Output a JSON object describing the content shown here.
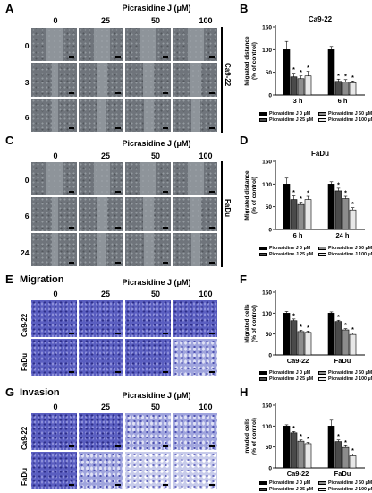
{
  "panels": {
    "A": {
      "letter": "A",
      "title": "Picrasidine J (μM)",
      "concs": [
        "0",
        "25",
        "50",
        "100"
      ],
      "rows": [
        "0 h",
        "3 h",
        "6 h"
      ],
      "cell_line": "Ca9-22"
    },
    "C": {
      "letter": "C",
      "title": "Picrasidine J (μM)",
      "concs": [
        "0",
        "25",
        "50",
        "100"
      ],
      "rows": [
        "0 h",
        "6 h",
        "24 h"
      ],
      "cell_line": "FaDu"
    },
    "E": {
      "letter": "E",
      "label": "Migration",
      "title": "Picrasidine J (μM)",
      "concs": [
        "0",
        "25",
        "50",
        "100"
      ],
      "rows": [
        "Ca9-22",
        "FaDu"
      ]
    },
    "G": {
      "letter": "G",
      "label": "Invasion",
      "title": "Picrasidine J (μM)",
      "concs": [
        "0",
        "25",
        "50",
        "100"
      ],
      "rows": [
        "Ca9-22",
        "FaDu"
      ]
    }
  },
  "legend": [
    "Picrasidine J 0 μM",
    "Picrasidine J 50 μM",
    "Picrasidine J 25 μM",
    "Picrasidine J 100 μM"
  ],
  "colors": {
    "c0": "#000000",
    "c25": "#4a4a4a",
    "c50": "#8c8c8c",
    "c100": "#e8e8e8",
    "stain": "#5a5ec0"
  },
  "chart_data": [
    {
      "id": "B",
      "type": "bar",
      "title": "Ca9-22",
      "ylabel": "Migrated distance\n(% of control)",
      "ylim": [
        0,
        150
      ],
      "yticks": [
        0,
        50,
        100,
        150
      ],
      "categories": [
        "3 h",
        "6 h"
      ],
      "series": [
        {
          "name": "Picrasidine J 0 μM",
          "values": [
            100,
            100
          ],
          "err": [
            18,
            7
          ]
        },
        {
          "name": "Picrasidine J 25 μM",
          "values": [
            40,
            30
          ],
          "err": [
            8,
            5
          ]
        },
        {
          "name": "Picrasidine J 50 μM",
          "values": [
            36,
            29
          ],
          "err": [
            6,
            5
          ]
        },
        {
          "name": "Picrasidine J 100 μM",
          "values": [
            42,
            27
          ],
          "err": [
            10,
            4
          ]
        }
      ],
      "sig": [
        "",
        "*",
        "*",
        "*"
      ]
    },
    {
      "id": "D",
      "type": "bar",
      "title": "FaDu",
      "ylabel": "Migrated distance\n(% of control)",
      "ylim": [
        0,
        150
      ],
      "yticks": [
        0,
        50,
        100,
        150
      ],
      "categories": [
        "6 h",
        "24 h"
      ],
      "series": [
        {
          "name": "Picrasidine J 0 μM",
          "values": [
            100,
            100
          ],
          "err": [
            13,
            5
          ]
        },
        {
          "name": "Picrasidine J 25 μM",
          "values": [
            66,
            85
          ],
          "err": [
            8,
            6
          ]
        },
        {
          "name": "Picrasidine J 50 μM",
          "values": [
            55,
            68
          ],
          "err": [
            5,
            5
          ]
        },
        {
          "name": "Picrasidine J 100 μM",
          "values": [
            66,
            43
          ],
          "err": [
            7,
            5
          ]
        }
      ],
      "sig": [
        "",
        "*",
        "*",
        "*"
      ]
    },
    {
      "id": "F",
      "type": "bar",
      "title": "",
      "ylabel": "Migrated cells\n(% of control)",
      "ylim": [
        0,
        150
      ],
      "yticks": [
        0,
        50,
        100,
        150
      ],
      "categories": [
        "Ca9-22",
        "FaDu"
      ],
      "series": [
        {
          "name": "Picrasidine J 0 μM",
          "values": [
            100,
            100
          ],
          "err": [
            4,
            3
          ]
        },
        {
          "name": "Picrasidine J 25 μM",
          "values": [
            82,
            80
          ],
          "err": [
            4,
            3
          ]
        },
        {
          "name": "Picrasidine J 50 μM",
          "values": [
            56,
            60
          ],
          "err": [
            3,
            3
          ]
        },
        {
          "name": "Picrasidine J 100 μM",
          "values": [
            54,
            49
          ],
          "err": [
            3,
            3
          ]
        }
      ],
      "sig": [
        "",
        "*",
        "*",
        "*"
      ]
    },
    {
      "id": "H",
      "type": "bar",
      "title": "",
      "ylabel": "Invaded cells\n(% of control)",
      "ylim": [
        0,
        150
      ],
      "yticks": [
        0,
        50,
        100,
        150
      ],
      "categories": [
        "Ca9-22",
        "FaDu"
      ],
      "series": [
        {
          "name": "Picrasidine J 0 μM",
          "values": [
            100,
            100
          ],
          "err": [
            3,
            14
          ]
        },
        {
          "name": "Picrasidine J 25 μM",
          "values": [
            84,
            63
          ],
          "err": [
            3,
            4
          ]
        },
        {
          "name": "Picrasidine J 50 μM",
          "values": [
            64,
            49
          ],
          "err": [
            3,
            4
          ]
        },
        {
          "name": "Picrasidine J 100 μM",
          "values": [
            58,
            29
          ],
          "err": [
            3,
            4
          ]
        }
      ],
      "sig": [
        "",
        "*",
        "*",
        "*"
      ]
    }
  ]
}
